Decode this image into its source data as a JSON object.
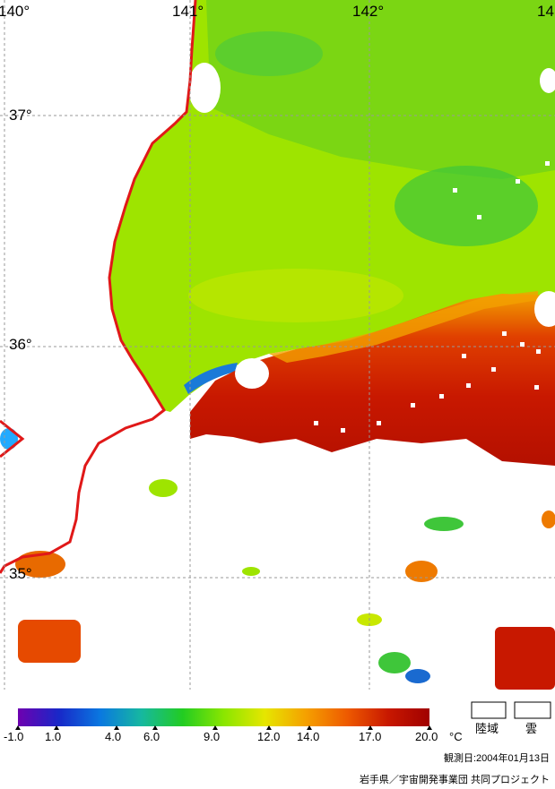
{
  "map": {
    "longitude_labels": [
      "140°",
      "141°",
      "142°",
      "14"
    ],
    "latitude_labels": [
      "37°",
      "36°",
      "35°"
    ]
  },
  "legend": {
    "unit": "°C",
    "colors": [
      "#6e00b0",
      "#1828c8",
      "#0a78e0",
      "#16b8a0",
      "#22cc22",
      "#8ae600",
      "#e6e600",
      "#f5a000",
      "#ee5a00",
      "#c81800",
      "#a00000"
    ],
    "ticks": [
      "-1.0",
      "1.0",
      "4.0",
      "6.0",
      "9.0",
      "12.0",
      "14.0",
      "17.0",
      "20.0"
    ],
    "land_label": "陸域",
    "cloud_label": "雲",
    "land_color": "#ffffff",
    "coast_color": "#e01818"
  },
  "footer": {
    "date_line": "観測日:2004年01月13日",
    "credit": "岩手県／宇宙開発事業団 共同プロジェクト"
  }
}
